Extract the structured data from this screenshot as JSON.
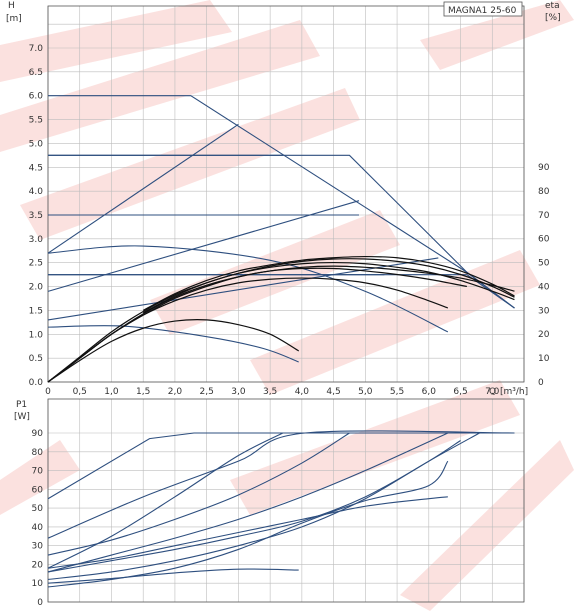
{
  "chart_data": [
    {
      "type": "line",
      "title": "MAGNA1 25-60",
      "ylabel": "H",
      "yunit": "[m]",
      "y2label": "eta",
      "y2unit": "[%]",
      "xlabel": "Q",
      "xunit": "[m³/h]",
      "xlim": [
        0,
        7.5
      ],
      "ylim": [
        0,
        7.0
      ],
      "y2lim": [
        0,
        90
      ],
      "x_ticks": [
        "0",
        "0,5",
        "1,0",
        "1,5",
        "2,0",
        "2,5",
        "3,0",
        "3,5",
        "4,0",
        "4,5",
        "5,0",
        "5,5",
        "6,0",
        "6,5",
        "7,0"
      ],
      "y_ticks": [
        "0.0",
        "0.5",
        "1.0",
        "1.5",
        "2.0",
        "2.5",
        "3.0",
        "3.5",
        "4.0",
        "4.5",
        "5.0",
        "5.5",
        "6.0",
        "6.5",
        "7.0"
      ],
      "y2_ticks": [
        "0",
        "10",
        "20",
        "30",
        "40",
        "50",
        "60",
        "70",
        "80",
        "90"
      ],
      "grid": true,
      "series_head_blue": [
        {
          "x": [
            0,
            2.25,
            6.6,
            7.35
          ],
          "y": [
            6.0,
            6.0,
            2.3,
            1.55
          ]
        },
        {
          "x": [
            0,
            3.7
          ],
          "y": [
            4.75,
            4.75
          ]
        },
        {
          "x": [
            0,
            4.75,
            6.6,
            7.35
          ],
          "y": [
            4.75,
            4.75,
            2.3,
            1.55
          ]
        },
        {
          "x": [
            0,
            4.9
          ],
          "y": [
            3.5,
            3.5
          ]
        },
        {
          "x": [
            0,
            5.3
          ],
          "y": [
            2.25,
            2.25
          ]
        },
        {
          "x": [
            0,
            3.0
          ],
          "y": [
            2.7,
            5.4
          ]
        },
        {
          "x": [
            0,
            4.9
          ],
          "y": [
            1.9,
            3.8
          ]
        },
        {
          "x": [
            0,
            6.15
          ],
          "y": [
            1.3,
            2.6
          ]
        },
        {
          "x": [
            0,
            1.5,
            3.5,
            5.0,
            6.3
          ],
          "y": [
            2.7,
            2.85,
            2.55,
            1.9,
            1.05
          ]
        },
        {
          "x": [
            0,
            1.2,
            2.5,
            3.4,
            3.95
          ],
          "y": [
            1.15,
            1.17,
            0.95,
            0.7,
            0.42
          ]
        },
        {
          "x": [
            0,
            6.6,
            7.35
          ],
          "y": [
            2.25,
            2.25,
            1.55
          ]
        }
      ],
      "series_eta_black": [
        {
          "x": [
            0,
            0.5,
            1.0,
            1.5,
            2.0,
            2.5,
            3.0,
            3.5,
            3.95
          ],
          "y": [
            0,
            9,
            17,
            22.5,
            25.5,
            26,
            24,
            20,
            13
          ]
        },
        {
          "x": [
            0,
            0.5,
            1.0,
            1.5,
            2.0,
            2.5,
            3.0,
            3.5,
            4.0,
            4.5,
            5.0,
            5.5,
            6.0,
            6.3
          ],
          "y": [
            0,
            10,
            20,
            28,
            34,
            38.5,
            41.5,
            43,
            43.5,
            43,
            41.5,
            38.5,
            34,
            31
          ]
        },
        {
          "x": [
            0,
            0.5,
            1.0,
            1.5,
            2.0,
            2.5,
            3.0,
            3.5,
            4.0,
            4.5,
            5.0,
            5.5,
            6.0,
            6.5,
            6.6
          ],
          "y": [
            0,
            10,
            20,
            28,
            35,
            40,
            44,
            46.5,
            47.5,
            47.5,
            46.5,
            45,
            43,
            40.5,
            40
          ]
        },
        {
          "x": [
            0,
            0.5,
            1.0,
            1.5,
            2.0,
            2.5,
            3.0,
            3.5,
            4.0,
            4.5,
            5.0,
            5.5,
            6.0,
            6.5,
            7.0,
            7.35
          ],
          "y": [
            0,
            10,
            20,
            28.5,
            35.5,
            40.5,
            44,
            46.5,
            48,
            48.5,
            48,
            47,
            45.5,
            43.5,
            40.5,
            38
          ]
        },
        {
          "x": [
            0,
            0.5,
            1.0,
            1.5,
            2.0,
            2.5,
            3.0,
            3.5,
            4.0,
            4.5,
            5.0,
            5.5,
            6.0,
            6.5,
            7.0,
            7.35
          ],
          "y": [
            0,
            10.5,
            21,
            29.5,
            36.5,
            41.5,
            45.5,
            48,
            49.5,
            50,
            49.5,
            48,
            46,
            42.5,
            38,
            34.5
          ]
        },
        {
          "x": [
            1.5,
            2.0,
            2.5,
            3.0,
            3.5,
            4.0,
            4.5,
            5.0,
            5.5,
            6.0,
            6.5,
            7.0,
            7.35
          ],
          "y": [
            29,
            36,
            41.5,
            45.5,
            48.5,
            50.5,
            51.5,
            51.5,
            50.5,
            48.5,
            45,
            40,
            35.5
          ]
        },
        {
          "x": [
            1.5,
            2.0,
            2.5,
            3.0,
            3.5,
            4.0,
            4.5,
            5.0,
            5.5,
            6.0,
            6.5,
            7.0,
            7.35
          ],
          "y": [
            30,
            37,
            42.5,
            46.5,
            49,
            51,
            52,
            52.5,
            52,
            50,
            46.5,
            41,
            36
          ]
        }
      ]
    },
    {
      "type": "line",
      "ylabel": "P1",
      "yunit": "[W]",
      "xlim": [
        0,
        7.5
      ],
      "ylim": [
        0,
        90
      ],
      "y_ticks": [
        "0",
        "10",
        "20",
        "30",
        "40",
        "50",
        "60",
        "70",
        "80",
        "90"
      ],
      "grid": true,
      "series": [
        {
          "x": [
            0,
            1.6,
            2.3,
            7.35
          ],
          "y": [
            55,
            87,
            90,
            90
          ]
        },
        {
          "x": [
            0,
            1.5,
            3.0,
            4.05,
            7.35
          ],
          "y": [
            34,
            56,
            75,
            90,
            90
          ]
        },
        {
          "x": [
            0,
            1.0,
            2.0,
            3.0,
            3.7
          ],
          "y": [
            18,
            35,
            56,
            78,
            90
          ]
        },
        {
          "x": [
            0,
            1.0,
            2.0,
            3.0,
            4.0,
            4.75
          ],
          "y": [
            25,
            33,
            44,
            57,
            74,
            90
          ]
        },
        {
          "x": [
            0,
            1.0,
            2.0,
            3.0,
            4.0,
            5.0,
            6.3
          ],
          "y": [
            16,
            25,
            34,
            44,
            56,
            70,
            90
          ]
        },
        {
          "x": [
            0,
            1.0,
            2.0,
            3.0,
            4.0,
            5.0,
            6.0,
            6.8
          ],
          "y": [
            12,
            16,
            22,
            30,
            40,
            55,
            75,
            90
          ]
        },
        {
          "x": [
            0,
            1.0,
            2.0,
            3.0,
            4.0,
            5.0,
            6.0,
            6.5
          ],
          "y": [
            16,
            22,
            28,
            35,
            43,
            56,
            75,
            86
          ]
        },
        {
          "x": [
            0,
            1.0,
            2.0,
            3.0,
            4.0,
            5.0,
            6.0,
            6.3
          ],
          "y": [
            8,
            12,
            18,
            28,
            42,
            54,
            62,
            75
          ]
        },
        {
          "x": [
            0,
            1.0,
            2.0,
            3.0,
            4.0,
            5.0,
            6.0,
            6.3
          ],
          "y": [
            18,
            23,
            30,
            37,
            44,
            51,
            55,
            56
          ]
        },
        {
          "x": [
            0,
            1.0,
            2.0,
            3.0,
            3.95
          ],
          "y": [
            10,
            12.5,
            15.5,
            17.5,
            17
          ]
        }
      ]
    }
  ],
  "colors": {
    "head_curve": "#2e4f7f",
    "eta_curve": "#111111",
    "power_curve": "#2e4f7f",
    "grid": "#bdbdbd",
    "watermark": "#e85a4f"
  }
}
